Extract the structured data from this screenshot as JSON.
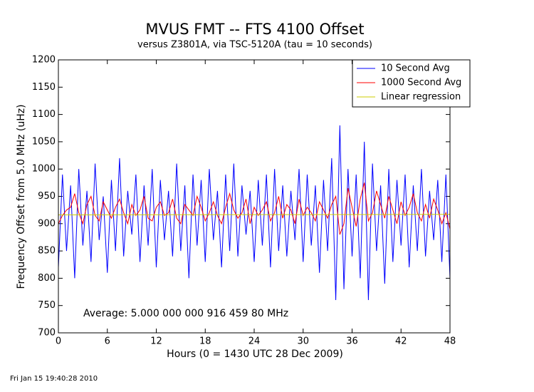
{
  "chart_data": {
    "type": "line",
    "title": "MVUS FMT -- FTS 4100 Offset",
    "subtitle": "versus Z3801A, via TSC-5120A (tau = 10 seconds)",
    "xlabel": "Hours (0 = 1430 UTC 28 Dec 2009)",
    "ylabel": "Frequency Offset from 5.0 MHz (uHz)",
    "annotation": "Average: 5.000 000 000 916 459 80 MHz",
    "footer": "Fri Jan 15 19:40:28 2010",
    "xlim": [
      0,
      48
    ],
    "xticks": [
      0,
      6,
      12,
      18,
      24,
      30,
      36,
      42,
      48
    ],
    "ylim": [
      700,
      1200
    ],
    "yticks": [
      700,
      750,
      800,
      850,
      900,
      950,
      1000,
      1050,
      1100,
      1150,
      1200
    ],
    "legend": "upper right",
    "x": [
      0,
      0.5,
      1,
      1.5,
      2,
      2.5,
      3,
      3.5,
      4,
      4.5,
      5,
      5.5,
      6,
      6.5,
      7,
      7.5,
      8,
      8.5,
      9,
      9.5,
      10,
      10.5,
      11,
      11.5,
      12,
      12.5,
      13,
      13.5,
      14,
      14.5,
      15,
      15.5,
      16,
      16.5,
      17,
      17.5,
      18,
      18.5,
      19,
      19.5,
      20,
      20.5,
      21,
      21.5,
      22,
      22.5,
      23,
      23.5,
      24,
      24.5,
      25,
      25.5,
      26,
      26.5,
      27,
      27.5,
      28,
      28.5,
      29,
      29.5,
      30,
      30.5,
      31,
      31.5,
      32,
      32.5,
      33,
      33.5,
      34,
      34.5,
      35,
      35.5,
      36,
      36.5,
      37,
      37.5,
      38,
      38.5,
      39,
      39.5,
      40,
      40.5,
      41,
      41.5,
      42,
      42.5,
      43,
      43.5,
      44,
      44.5,
      45,
      45.5,
      46,
      46.5,
      47,
      47.5,
      48
    ],
    "series": [
      {
        "name": "10 Second Avg",
        "color": "#0000ff",
        "values": [
          820,
          990,
          850,
          970,
          800,
          1000,
          860,
          960,
          830,
          1010,
          870,
          950,
          810,
          980,
          850,
          1020,
          840,
          960,
          880,
          990,
          830,
          970,
          860,
          1000,
          820,
          980,
          870,
          960,
          840,
          1010,
          850,
          970,
          800,
          990,
          860,
          980,
          830,
          1000,
          870,
          960,
          820,
          990,
          850,
          1010,
          840,
          970,
          880,
          960,
          830,
          980,
          860,
          990,
          820,
          1000,
          850,
          970,
          840,
          960,
          870,
          1000,
          830,
          990,
          860,
          970,
          810,
          980,
          850,
          1020,
          760,
          1080,
          780,
          1000,
          840,
          990,
          800,
          1050,
          760,
          1010,
          850,
          970,
          790,
          1000,
          830,
          980,
          860,
          990,
          820,
          970,
          850,
          1000,
          840,
          960,
          870,
          980,
          830,
          990,
          800
        ]
      },
      {
        "name": "1000 Second Avg",
        "color": "#ff0000",
        "values": [
          900,
          915,
          925,
          930,
          955,
          920,
          900,
          935,
          950,
          915,
          905,
          940,
          925,
          910,
          930,
          945,
          920,
          900,
          935,
          915,
          925,
          950,
          910,
          905,
          930,
          940,
          915,
          920,
          945,
          910,
          900,
          935,
          925,
          915,
          950,
          930,
          905,
          920,
          940,
          915,
          900,
          930,
          955,
          925,
          910,
          920,
          945,
          900,
          930,
          915,
          925,
          940,
          905,
          920,
          950,
          910,
          935,
          925,
          900,
          945,
          915,
          930,
          920,
          905,
          940,
          925,
          910,
          935,
          950,
          880,
          900,
          965,
          930,
          895,
          945,
          975,
          905,
          920,
          960,
          935,
          910,
          950,
          925,
          900,
          940,
          915,
          930,
          955,
          920,
          905,
          935,
          910,
          945,
          925,
          900,
          920,
          890
        ]
      },
      {
        "name": "Linear regression",
        "color": "#cccc00",
        "x": [
          0,
          48
        ],
        "values": [
          916,
          917
        ]
      }
    ]
  }
}
